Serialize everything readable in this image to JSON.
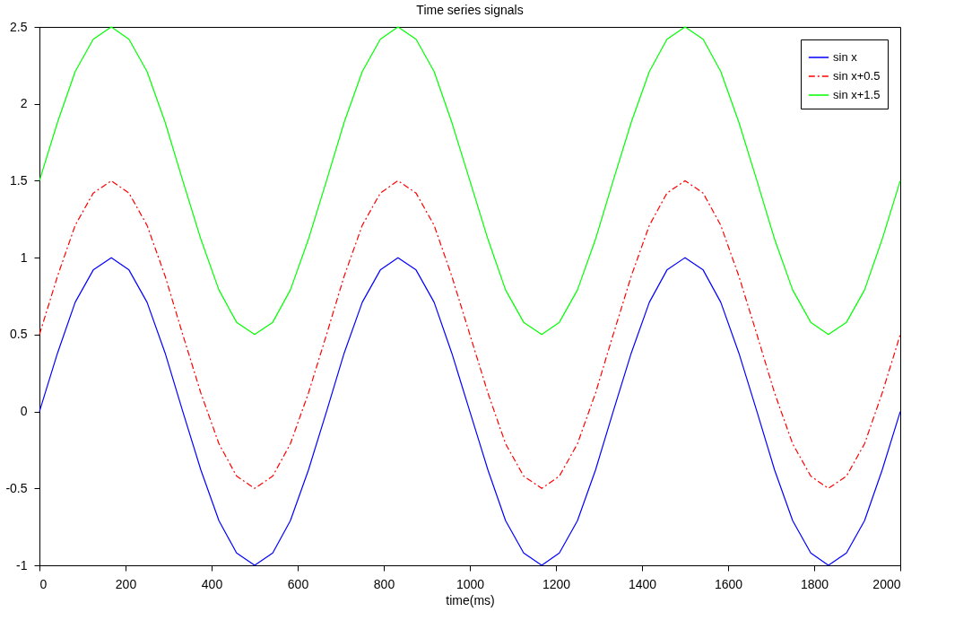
{
  "chart_data": {
    "type": "line",
    "title": "Time series signals",
    "xlabel": "time(ms)",
    "x": [
      0,
      42,
      83,
      125,
      167,
      208,
      250,
      292,
      333,
      375,
      417,
      458,
      500,
      542,
      583,
      625,
      667,
      708,
      750,
      792,
      833,
      875,
      917,
      958,
      1000,
      1042,
      1083,
      1125,
      1167,
      1208,
      1250,
      1292,
      1333,
      1375,
      1417,
      1458,
      1500,
      1542,
      1583,
      1625,
      1667,
      1708,
      1750,
      1792,
      1833,
      1875,
      1917,
      1958,
      2000
    ],
    "series": [
      {
        "name": "sin x",
        "color": "#0000ff",
        "line_style": "solid",
        "values": [
          0,
          0.38,
          0.71,
          0.92,
          1,
          0.92,
          0.71,
          0.38,
          0,
          -0.38,
          -0.71,
          -0.92,
          -1,
          -0.92,
          -0.71,
          -0.38,
          0,
          0.38,
          0.71,
          0.92,
          1,
          0.92,
          0.71,
          0.38,
          0,
          -0.38,
          -0.71,
          -0.92,
          -1,
          -0.92,
          -0.71,
          -0.38,
          0,
          0.38,
          0.71,
          0.92,
          1,
          0.92,
          0.71,
          0.38,
          0,
          -0.38,
          -0.71,
          -0.92,
          -1,
          -0.92,
          -0.71,
          -0.38,
          0
        ]
      },
      {
        "name": "sin x+0.5",
        "color": "#ff0000",
        "line_style": "dashed",
        "values": [
          0.5,
          0.88,
          1.21,
          1.42,
          1.5,
          1.42,
          1.21,
          0.88,
          0.5,
          0.12,
          -0.21,
          -0.42,
          -0.5,
          -0.42,
          -0.21,
          0.12,
          0.5,
          0.88,
          1.21,
          1.42,
          1.5,
          1.42,
          1.21,
          0.88,
          0.5,
          0.12,
          -0.21,
          -0.42,
          -0.5,
          -0.42,
          -0.21,
          0.12,
          0.5,
          0.88,
          1.21,
          1.42,
          1.5,
          1.42,
          1.21,
          0.88,
          0.5,
          0.12,
          -0.21,
          -0.42,
          -0.5,
          -0.42,
          -0.21,
          0.12,
          0.5
        ]
      },
      {
        "name": "sin x+1.5",
        "color": "#00ff00",
        "line_style": "solid",
        "values": [
          1.5,
          1.88,
          2.21,
          2.42,
          2.5,
          2.42,
          2.21,
          1.88,
          1.5,
          1.12,
          0.79,
          0.58,
          0.5,
          0.58,
          0.79,
          1.12,
          1.5,
          1.88,
          2.21,
          2.42,
          2.5,
          2.42,
          2.21,
          1.88,
          1.5,
          1.12,
          0.79,
          0.58,
          0.5,
          0.58,
          0.79,
          1.12,
          1.5,
          1.88,
          2.21,
          2.42,
          2.5,
          2.42,
          2.21,
          1.88,
          1.5,
          1.12,
          0.79,
          0.58,
          0.5,
          0.58,
          0.79,
          1.12,
          1.5
        ]
      }
    ],
    "xlim": [
      0,
      2000
    ],
    "xticks": [
      0,
      200,
      400,
      600,
      800,
      1000,
      1200,
      1400,
      1600,
      1800,
      2000
    ],
    "ylim": [
      -1,
      2.5
    ],
    "yticks": [
      -1,
      -0.5,
      0,
      0.5,
      1,
      1.5,
      2,
      2.5
    ],
    "grid": false,
    "legend": "top right",
    "marker": "none"
  }
}
